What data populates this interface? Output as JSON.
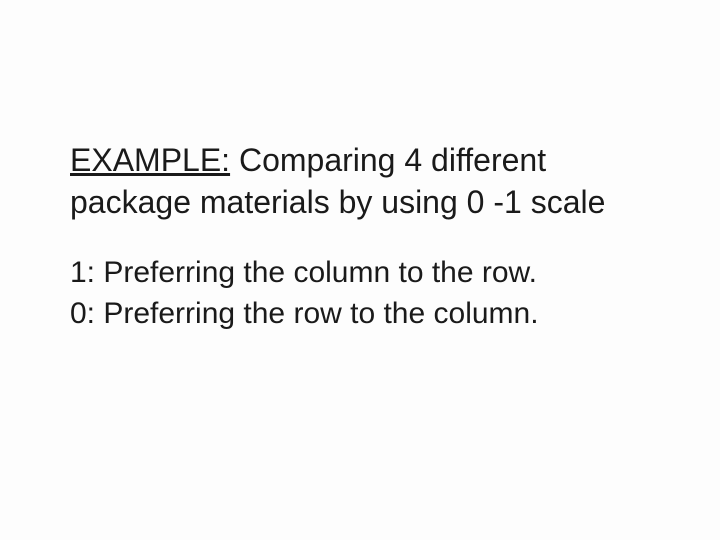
{
  "slide": {
    "heading_prefix": "EXAMPLE:",
    "heading_rest": " Comparing 4 different package materials by using 0 -1 scale",
    "body_line1": "1: Preferring the column to the row.",
    "body_line2": "0: Preferring the row to the column.",
    "background_color": "#fdfdfd",
    "text_color": "#1a1a1a",
    "heading_fontsize": 32,
    "body_fontsize": 30,
    "font_family": "Arial"
  }
}
